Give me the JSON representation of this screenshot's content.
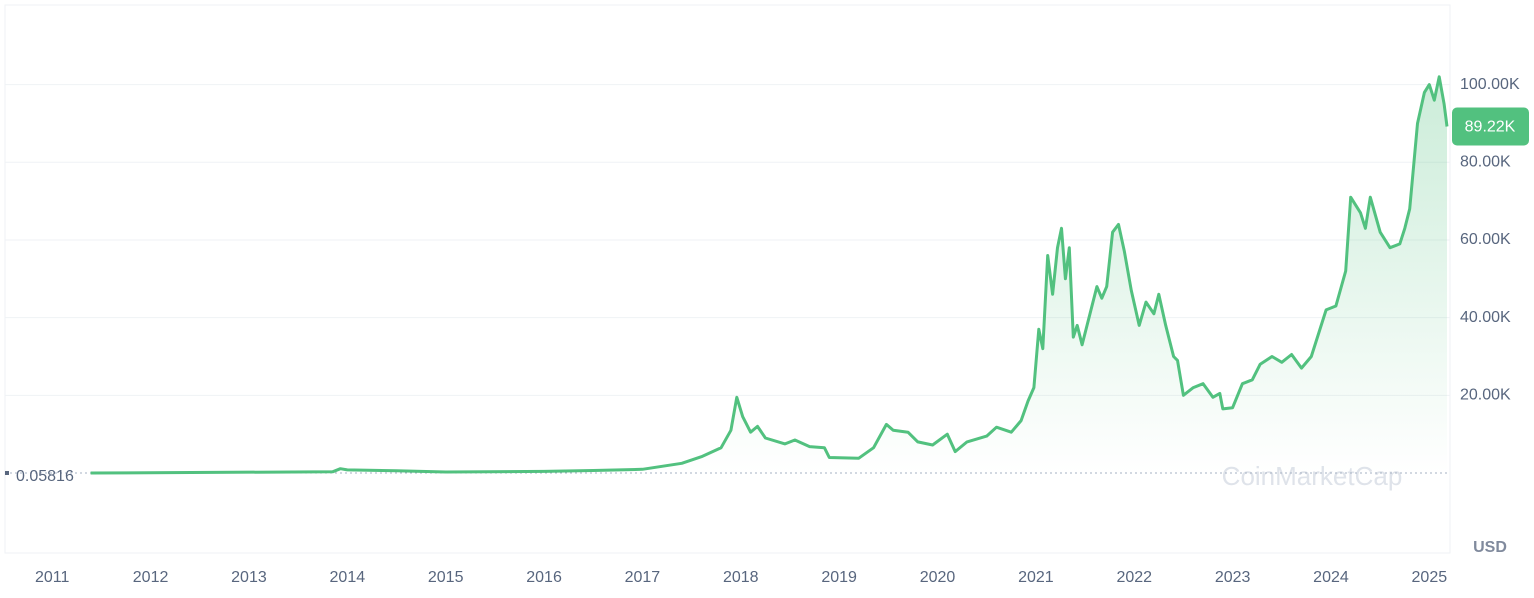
{
  "chart_data": {
    "type": "line",
    "x": [
      2011.39,
      2013.85,
      2013.93,
      2014.0,
      2014.5,
      2015.0,
      2016.0,
      2016.5,
      2017.0,
      2017.4,
      2017.6,
      2017.8,
      2017.9,
      2017.96,
      2018.02,
      2018.1,
      2018.17,
      2018.25,
      2018.45,
      2018.55,
      2018.7,
      2018.85,
      2018.9,
      2019.2,
      2019.35,
      2019.48,
      2019.55,
      2019.7,
      2019.8,
      2019.95,
      2020.1,
      2020.18,
      2020.3,
      2020.5,
      2020.6,
      2020.75,
      2020.85,
      2020.92,
      2020.98,
      2021.03,
      2021.07,
      2021.12,
      2021.17,
      2021.22,
      2021.26,
      2021.3,
      2021.34,
      2021.38,
      2021.42,
      2021.47,
      2021.55,
      2021.62,
      2021.67,
      2021.72,
      2021.78,
      2021.84,
      2021.9,
      2021.97,
      2022.05,
      2022.12,
      2022.2,
      2022.25,
      2022.32,
      2022.4,
      2022.44,
      2022.5,
      2022.6,
      2022.7,
      2022.8,
      2022.87,
      2022.9,
      2023.0,
      2023.1,
      2023.2,
      2023.28,
      2023.4,
      2023.5,
      2023.6,
      2023.7,
      2023.8,
      2023.95,
      2024.05,
      2024.15,
      2024.2,
      2024.3,
      2024.35,
      2024.4,
      2024.5,
      2024.6,
      2024.7,
      2024.75,
      2024.8,
      2024.88,
      2024.95,
      2025.0,
      2025.05,
      2025.1,
      2025.15,
      2025.18
    ],
    "values": [
      0,
      300,
      1100,
      800,
      600,
      250,
      400,
      650,
      950,
      2500,
      4200,
      6500,
      11000,
      19500,
      14500,
      10500,
      12000,
      9000,
      7500,
      8500,
      6800,
      6500,
      4000,
      3800,
      6500,
      12500,
      11000,
      10500,
      8000,
      7200,
      10000,
      5500,
      8000,
      9500,
      11800,
      10500,
      13500,
      18500,
      22000,
      37000,
      32000,
      56000,
      46000,
      58000,
      63000,
      50000,
      58000,
      35000,
      38000,
      33000,
      41000,
      48000,
      45000,
      48000,
      62000,
      64000,
      57000,
      47000,
      38000,
      44000,
      41000,
      46000,
      38000,
      30000,
      29000,
      20000,
      22000,
      23000,
      19500,
      20500,
      16500,
      16800,
      23000,
      24000,
      28000,
      30000,
      28500,
      30500,
      27000,
      30000,
      42000,
      43000,
      52000,
      71000,
      67000,
      63000,
      71000,
      62000,
      58000,
      59000,
      63000,
      68000,
      90000,
      98000,
      100000,
      96000,
      102000,
      95000,
      89220
    ],
    "color": "#52c17f",
    "xlim": [
      2010.52,
      2025.21
    ],
    "xticks": [
      2011,
      2012,
      2013,
      2014,
      2015,
      2016,
      2017,
      2018,
      2019,
      2020,
      2021,
      2022,
      2023,
      2024,
      2025
    ],
    "ylim": [
      -20600,
      120500
    ],
    "yticks": [
      {
        "value": 20000,
        "label": "20.00K"
      },
      {
        "value": 40000,
        "label": "40.00K"
      },
      {
        "value": 60000,
        "label": "60.00K"
      },
      {
        "value": 80000,
        "label": "80.00K"
      },
      {
        "value": 100000,
        "label": "100.00K"
      }
    ],
    "grid": true,
    "current_price": {
      "value": 89220,
      "label": "89.22K"
    },
    "start_price": 0.05816,
    "currency": "USD",
    "watermark": "CoinMarketCap"
  }
}
